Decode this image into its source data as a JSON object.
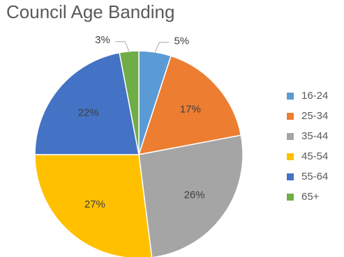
{
  "chart_data": {
    "type": "pie",
    "title": "Council Age Banding",
    "categories": [
      "16-24",
      "25-34",
      "35-44",
      "45-54",
      "55-64",
      "65+"
    ],
    "values": [
      5,
      17,
      26,
      27,
      22,
      3
    ],
    "data_labels": [
      "5%",
      "17%",
      "26%",
      "27%",
      "22%",
      "3%"
    ],
    "colors": [
      "#5B9BD5",
      "#ED7D31",
      "#A5A5A5",
      "#FFC000",
      "#4472C4",
      "#70AD47"
    ],
    "legend_position": "right",
    "start_angle": "top, clockwise"
  }
}
